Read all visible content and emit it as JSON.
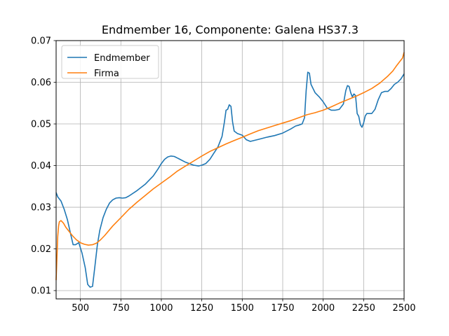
{
  "chart_data": {
    "type": "line",
    "title": "Endmember 16, Componente: Galena HS37.3",
    "xlabel": "",
    "ylabel": "",
    "xlim": [
      350,
      2500
    ],
    "ylim": [
      0.008,
      0.07
    ],
    "x_ticks": [
      500,
      750,
      1000,
      1250,
      1500,
      1750,
      2000,
      2250,
      2500
    ],
    "x_tick_labels": [
      "500",
      "750",
      "1000",
      "1250",
      "1500",
      "1750",
      "2000",
      "2250",
      "2500"
    ],
    "y_ticks": [
      0.01,
      0.02,
      0.03,
      0.04,
      0.05,
      0.06,
      0.07
    ],
    "y_tick_labels": [
      "0.01",
      "0.02",
      "0.03",
      "0.04",
      "0.05",
      "0.06",
      "0.07"
    ],
    "grid": true,
    "legend_position": "top-left",
    "series": [
      {
        "name": "Endmember",
        "color": "#1f77b4",
        "x": [
          350,
          360,
          380,
          400,
          420,
          440,
          455,
          470,
          490,
          510,
          530,
          545,
          560,
          575,
          590,
          605,
          620,
          640,
          660,
          680,
          700,
          720,
          740,
          760,
          780,
          800,
          850,
          900,
          950,
          980,
          1000,
          1020,
          1040,
          1060,
          1080,
          1100,
          1150,
          1200,
          1230,
          1250,
          1275,
          1300,
          1325,
          1350,
          1375,
          1390,
          1400,
          1410,
          1420,
          1430,
          1440,
          1450,
          1470,
          1500,
          1525,
          1550,
          1600,
          1650,
          1700,
          1750,
          1800,
          1830,
          1850,
          1870,
          1885,
          1895,
          1905,
          1915,
          1925,
          1950,
          1975,
          2000,
          2025,
          2050,
          2075,
          2100,
          2125,
          2140,
          2150,
          2160,
          2170,
          2180,
          2190,
          2200,
          2210,
          2220,
          2230,
          2240,
          2250,
          2260,
          2270,
          2280,
          2300,
          2320,
          2340,
          2360,
          2380,
          2400,
          2420,
          2440,
          2460,
          2480,
          2500
        ],
        "y": [
          0.0335,
          0.0325,
          0.0315,
          0.0295,
          0.027,
          0.0235,
          0.021,
          0.021,
          0.0215,
          0.019,
          0.0155,
          0.0115,
          0.0108,
          0.011,
          0.016,
          0.021,
          0.0245,
          0.0275,
          0.0295,
          0.031,
          0.0318,
          0.0322,
          0.0323,
          0.0322,
          0.0323,
          0.0327,
          0.034,
          0.0355,
          0.0375,
          0.0392,
          0.0405,
          0.0415,
          0.0421,
          0.0423,
          0.0422,
          0.0418,
          0.0408,
          0.0401,
          0.0399,
          0.0401,
          0.0405,
          0.0415,
          0.043,
          0.0445,
          0.047,
          0.0505,
          0.0533,
          0.0535,
          0.0546,
          0.0542,
          0.0505,
          0.0483,
          0.0477,
          0.0473,
          0.0462,
          0.0458,
          0.0463,
          0.0468,
          0.0472,
          0.0478,
          0.0488,
          0.0495,
          0.0497,
          0.05,
          0.0515,
          0.058,
          0.0624,
          0.0622,
          0.0595,
          0.0575,
          0.0565,
          0.0553,
          0.0538,
          0.0533,
          0.0533,
          0.0535,
          0.0548,
          0.058,
          0.0592,
          0.059,
          0.0575,
          0.0565,
          0.0572,
          0.0568,
          0.0525,
          0.0518,
          0.0498,
          0.0492,
          0.0502,
          0.0519,
          0.0525,
          0.0525,
          0.0525,
          0.0535,
          0.0558,
          0.0575,
          0.0578,
          0.0578,
          0.0585,
          0.0595,
          0.06,
          0.0608,
          0.062
        ]
      },
      {
        "name": "Firma",
        "color": "#ff7f0e",
        "x": [
          350,
          355,
          360,
          365,
          370,
          380,
          395,
          410,
          430,
          450,
          475,
          500,
          525,
          550,
          575,
          600,
          625,
          650,
          700,
          750,
          800,
          850,
          900,
          950,
          1000,
          1050,
          1100,
          1150,
          1200,
          1250,
          1300,
          1350,
          1400,
          1450,
          1500,
          1550,
          1600,
          1650,
          1700,
          1750,
          1800,
          1850,
          1900,
          1950,
          2000,
          2050,
          2100,
          2150,
          2200,
          2250,
          2300,
          2350,
          2400,
          2430,
          2450,
          2470,
          2490,
          2500
        ],
        "y": [
          0.0125,
          0.018,
          0.023,
          0.0255,
          0.0265,
          0.0268,
          0.0262,
          0.0252,
          0.0242,
          0.0232,
          0.0222,
          0.0215,
          0.0211,
          0.0209,
          0.021,
          0.0214,
          0.0222,
          0.0232,
          0.0255,
          0.0275,
          0.0295,
          0.0312,
          0.0328,
          0.0344,
          0.0358,
          0.0372,
          0.0387,
          0.0399,
          0.0411,
          0.0423,
          0.0434,
          0.0443,
          0.0452,
          0.046,
          0.0468,
          0.0476,
          0.0484,
          0.049,
          0.0496,
          0.0502,
          0.0508,
          0.0515,
          0.0522,
          0.0527,
          0.0533,
          0.0541,
          0.055,
          0.0558,
          0.0566,
          0.0575,
          0.0585,
          0.0598,
          0.0615,
          0.0627,
          0.0638,
          0.0648,
          0.0658,
          0.0672
        ]
      }
    ]
  }
}
